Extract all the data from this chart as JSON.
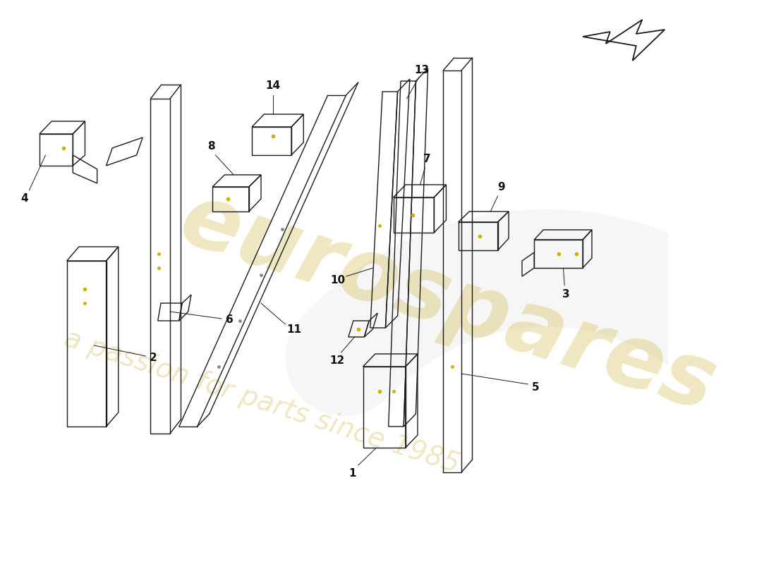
{
  "bg_color": "#ffffff",
  "line_color": "#1a1a1a",
  "lw": 1.0,
  "dot_color": "#c8b400",
  "wm1": "eurospares",
  "wm2": "a passion for parts since 1985",
  "wm_color": "#c8aa20",
  "wm_alpha": 0.28,
  "label_fs": 11,
  "label_color": "#111111"
}
